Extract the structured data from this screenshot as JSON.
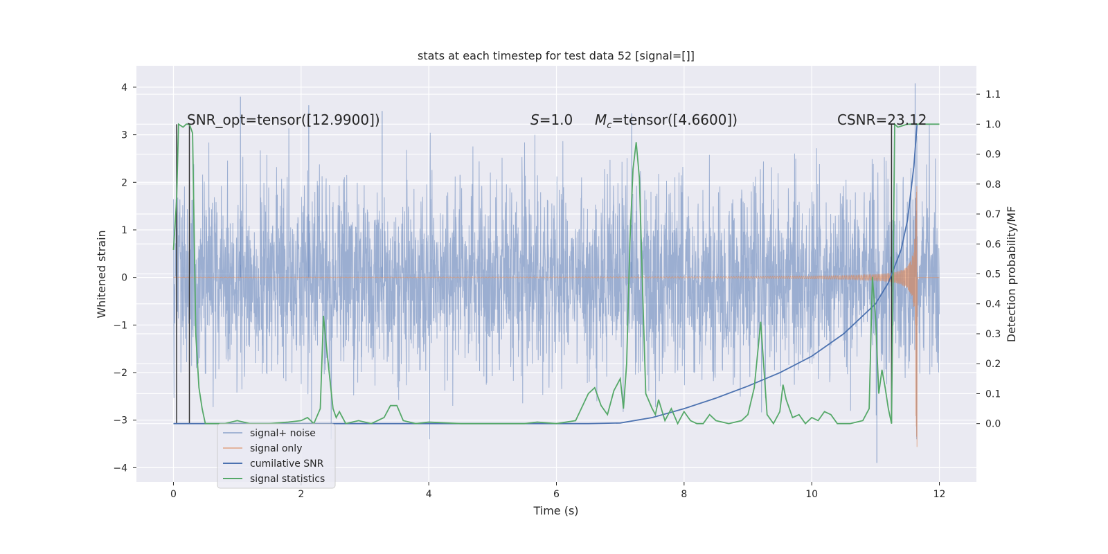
{
  "chart_data": {
    "type": "line",
    "title": "stats at each timestep for test data 52 [signal=[]]",
    "xlabel": "Time (s)",
    "ylabel_left": "Whitened strain",
    "ylabel_right": "Detection probability/MF",
    "xlim": [
      -0.58,
      12.58
    ],
    "ylim_left": [
      -4.3,
      4.45
    ],
    "ylim_right": [
      -0.195,
      1.195
    ],
    "x_ticks": [
      0,
      2,
      4,
      6,
      8,
      10,
      12
    ],
    "x_tick_labels": [
      "0",
      "2",
      "4",
      "6",
      "8",
      "10",
      "12"
    ],
    "y_left_ticks": [
      -4,
      -3,
      -2,
      -1,
      0,
      1,
      2,
      3,
      4
    ],
    "y_left_tick_labels": [
      "−4",
      "−3",
      "−2",
      "−1",
      "0",
      "1",
      "2",
      "3",
      "4"
    ],
    "y_right_ticks": [
      0.0,
      0.1,
      0.2,
      0.3,
      0.4,
      0.5,
      0.6,
      0.7,
      0.8,
      0.9,
      1.0,
      1.1
    ],
    "y_right_tick_labels": [
      "0.0",
      "0.1",
      "0.2",
      "0.3",
      "0.4",
      "0.5",
      "0.6",
      "0.7",
      "0.8",
      "0.9",
      "1.0",
      "1.1"
    ],
    "annotations": {
      "snr_opt": "SNR_opt=tensor([12.9900])",
      "s_label": "S",
      "s_value": "=1.0",
      "mc_label": "M",
      "mc_sub": "c",
      "mc_value": "=tensor([4.6600])",
      "csnr": "CSNR=23.12"
    },
    "legend": {
      "placement": "lower-left",
      "entries": [
        "signal+ noise",
        "signal only",
        "cumilative SNR",
        "signal statistics"
      ]
    },
    "colors": {
      "signal_noise": "#4c72b0",
      "signal_only": "#dd8452",
      "cumulative_snr": "#4c72b0",
      "signal_statistics": "#55a868",
      "vlines": "#333333",
      "background": "#eaeaf2",
      "grid": "#ffffff"
    },
    "signal_noise": {
      "name": "signal+ noise",
      "t_start": 0,
      "t_end": 12,
      "approx_sigma": 1.0,
      "peak_max": 4.08,
      "peak_min": -3.9
    },
    "signal_only": {
      "name": "signal only",
      "t_merger": 11.65,
      "final_max": 2.0,
      "final_min": -3.6
    },
    "cumulative_snr": {
      "name": "cumilative SNR",
      "axis": "right",
      "points": [
        [
          0,
          0.0
        ],
        [
          6,
          0.0
        ],
        [
          6.5,
          0.0
        ],
        [
          7,
          0.002
        ],
        [
          7.5,
          0.02
        ],
        [
          8,
          0.05
        ],
        [
          8.5,
          0.085
        ],
        [
          9,
          0.125
        ],
        [
          9.5,
          0.17
        ],
        [
          10,
          0.225
        ],
        [
          10.5,
          0.3
        ],
        [
          11,
          0.4
        ],
        [
          11.2,
          0.47
        ],
        [
          11.4,
          0.58
        ],
        [
          11.5,
          0.68
        ],
        [
          11.6,
          0.86
        ],
        [
          11.65,
          1.0
        ]
      ]
    },
    "signal_statistics": {
      "name": "signal statistics",
      "axis": "right",
      "points": [
        [
          0,
          0.58
        ],
        [
          0.05,
          0.75
        ],
        [
          0.08,
          1.0
        ],
        [
          0.15,
          0.99
        ],
        [
          0.2,
          1.0
        ],
        [
          0.25,
          1.0
        ],
        [
          0.3,
          0.97
        ],
        [
          0.35,
          0.3
        ],
        [
          0.4,
          0.12
        ],
        [
          0.45,
          0.05
        ],
        [
          0.5,
          0.0
        ],
        [
          0.8,
          0.0
        ],
        [
          1.0,
          0.01
        ],
        [
          1.2,
          0.0
        ],
        [
          1.5,
          0.0
        ],
        [
          1.8,
          0.005
        ],
        [
          2.0,
          0.01
        ],
        [
          2.1,
          0.02
        ],
        [
          2.2,
          0.0
        ],
        [
          2.3,
          0.05
        ],
        [
          2.35,
          0.36
        ],
        [
          2.4,
          0.25
        ],
        [
          2.5,
          0.05
        ],
        [
          2.55,
          0.02
        ],
        [
          2.6,
          0.04
        ],
        [
          2.7,
          0.0
        ],
        [
          2.9,
          0.01
        ],
        [
          3.1,
          0.0
        ],
        [
          3.3,
          0.02
        ],
        [
          3.4,
          0.06
        ],
        [
          3.5,
          0.06
        ],
        [
          3.6,
          0.01
        ],
        [
          3.8,
          0.0
        ],
        [
          4.0,
          0.005
        ],
        [
          4.5,
          0.0
        ],
        [
          5.0,
          0.0
        ],
        [
          5.5,
          0.0
        ],
        [
          5.7,
          0.005
        ],
        [
          6.0,
          0.0
        ],
        [
          6.3,
          0.01
        ],
        [
          6.5,
          0.1
        ],
        [
          6.6,
          0.12
        ],
        [
          6.7,
          0.06
        ],
        [
          6.8,
          0.03
        ],
        [
          6.9,
          0.11
        ],
        [
          7.0,
          0.15
        ],
        [
          7.05,
          0.05
        ],
        [
          7.1,
          0.2
        ],
        [
          7.15,
          0.6
        ],
        [
          7.2,
          0.85
        ],
        [
          7.25,
          0.94
        ],
        [
          7.3,
          0.82
        ],
        [
          7.35,
          0.45
        ],
        [
          7.4,
          0.1
        ],
        [
          7.5,
          0.05
        ],
        [
          7.55,
          0.03
        ],
        [
          7.6,
          0.08
        ],
        [
          7.7,
          0.01
        ],
        [
          7.8,
          0.05
        ],
        [
          7.9,
          0.0
        ],
        [
          8.0,
          0.04
        ],
        [
          8.1,
          0.01
        ],
        [
          8.2,
          0.0
        ],
        [
          8.3,
          0.0
        ],
        [
          8.4,
          0.03
        ],
        [
          8.5,
          0.01
        ],
        [
          8.7,
          0.0
        ],
        [
          8.9,
          0.01
        ],
        [
          9.0,
          0.03
        ],
        [
          9.1,
          0.12
        ],
        [
          9.2,
          0.34
        ],
        [
          9.3,
          0.03
        ],
        [
          9.4,
          0.0
        ],
        [
          9.5,
          0.04
        ],
        [
          9.55,
          0.13
        ],
        [
          9.6,
          0.08
        ],
        [
          9.7,
          0.02
        ],
        [
          9.8,
          0.03
        ],
        [
          9.9,
          0.0
        ],
        [
          10.0,
          0.02
        ],
        [
          10.1,
          0.01
        ],
        [
          10.2,
          0.04
        ],
        [
          10.3,
          0.03
        ],
        [
          10.4,
          0.0
        ],
        [
          10.6,
          0.0
        ],
        [
          10.8,
          0.01
        ],
        [
          10.9,
          0.05
        ],
        [
          10.95,
          0.49
        ],
        [
          11.0,
          0.35
        ],
        [
          11.05,
          0.1
        ],
        [
          11.1,
          0.18
        ],
        [
          11.15,
          0.12
        ],
        [
          11.2,
          0.05
        ],
        [
          11.25,
          0.0
        ],
        [
          11.3,
          1.0
        ],
        [
          11.35,
          0.99
        ],
        [
          11.5,
          1.0
        ],
        [
          11.65,
          1.0
        ],
        [
          12.0,
          1.0
        ]
      ]
    },
    "vertical_lines": [
      0.05,
      0.25,
      11.25
    ]
  }
}
